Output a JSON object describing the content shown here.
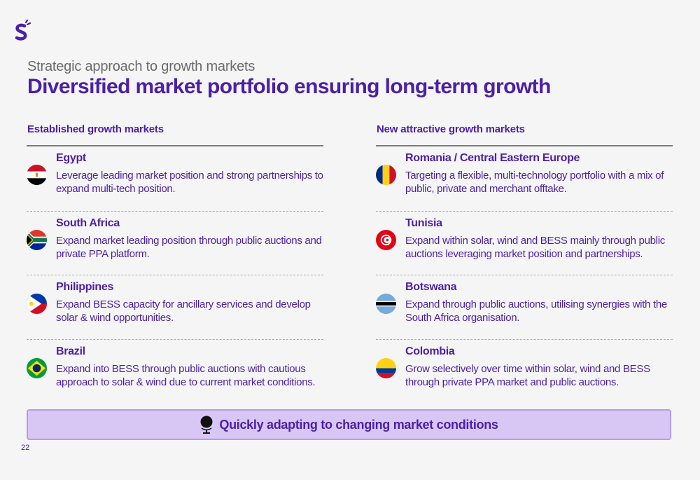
{
  "header": {
    "kicker": "Strategic approach to growth markets",
    "title": "Diversified market portfolio ensuring long-term growth"
  },
  "left": {
    "heading": "Established growth markets",
    "items": [
      {
        "name": "Egypt",
        "desc": "Leverage leading market position and strong partnerships to expand multi-tech position.",
        "flag": "egypt-flag-icon"
      },
      {
        "name": "South Africa",
        "desc": "Expand market leading position through public auctions and private PPA platform.",
        "flag": "south-africa-flag-icon"
      },
      {
        "name": "Philippines",
        "desc": "Expand BESS capacity for ancillary services and develop solar & wind opportunities.",
        "flag": "philippines-flag-icon"
      },
      {
        "name": "Brazil",
        "desc": "Expand into BESS through public auctions with cautious approach to solar & wind due to current market conditions.",
        "flag": "brazil-flag-icon"
      }
    ]
  },
  "right": {
    "heading": "New attractive growth markets",
    "items": [
      {
        "name": "Romania / Central Eastern Europe",
        "desc": "Targeting a flexible, multi-technology portfolio with a mix of public, private and merchant offtake.",
        "flag": "romania-flag-icon"
      },
      {
        "name": "Tunisia",
        "desc": "Expand within solar, wind and BESS mainly through public auctions leveraging market position and partnerships.",
        "flag": "tunisia-flag-icon"
      },
      {
        "name": "Botswana",
        "desc": "Expand through public auctions, utilising synergies with the South Africa organisation.",
        "flag": "botswana-flag-icon"
      },
      {
        "name": "Colombia",
        "desc": "Grow selectively over time within solar, wind and BESS through private PPA market and public auctions.",
        "flag": "colombia-flag-icon"
      }
    ]
  },
  "banner": {
    "text": "Quickly adapting to changing market conditions",
    "icon": "globe-icon"
  },
  "page_number": "22",
  "colors": {
    "primary": "#4b1fa6",
    "banner_bg": "#d8c6f5",
    "banner_border": "#b59be8",
    "background": "#f5f5f5"
  }
}
